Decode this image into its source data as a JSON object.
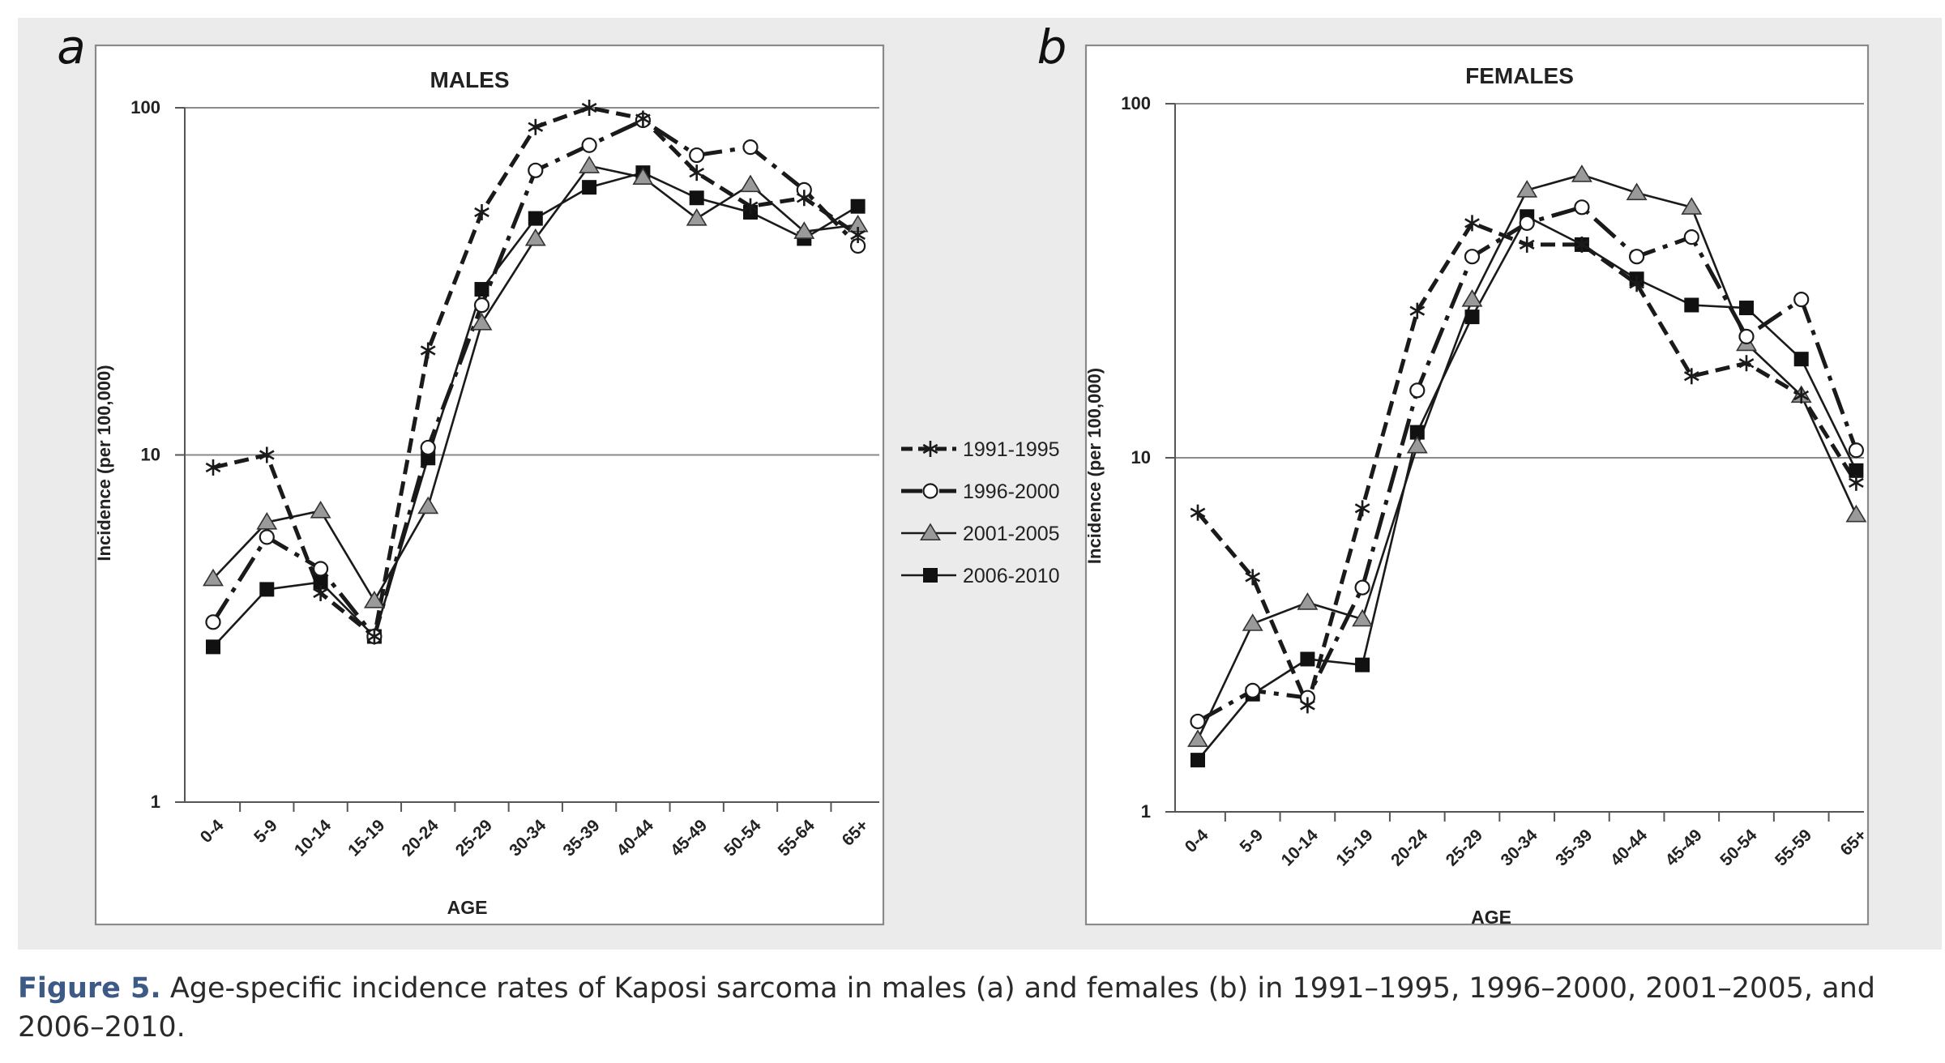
{
  "panel_labels": [
    "a",
    "b"
  ],
  "legend": {
    "entries": [
      {
        "label": "1991-1995",
        "style": "dashed",
        "marker": "star"
      },
      {
        "label": "1996-2000",
        "style": "dashdot",
        "marker": "circle-open"
      },
      {
        "label": "2001-2005",
        "style": "solid",
        "marker": "triangle-gray"
      },
      {
        "label": "2006-2010",
        "style": "solid",
        "marker": "square-black"
      }
    ]
  },
  "caption": {
    "label": "Figure 5.",
    "text": " Age-specific incidence rates of Kaposi sarcoma in males (a) and females (b) in 1991–1995, 1996–2000, 2001–2005, and 2006–2010."
  },
  "chart_data": [
    {
      "type": "line",
      "panel": "a",
      "title": "MALES",
      "xlabel": "AGE",
      "ylabel": "Incidence (per 100,000)",
      "yscale": "log",
      "ylim": [
        1,
        100
      ],
      "yticks": [
        "1",
        "10",
        "100"
      ],
      "grid": "horizontal",
      "categories": [
        "0-4",
        "5-9",
        "10-14",
        "15-19",
        "20-24",
        "25-29",
        "30-34",
        "35-39",
        "40-44",
        "45-49",
        "50-54",
        "55-64",
        "65+"
      ],
      "series": [
        {
          "name": "1991-1995",
          "values": [
            9.2,
            10,
            4.0,
            3.0,
            20,
            50,
            88,
            100,
            93,
            65,
            52,
            55,
            43
          ]
        },
        {
          "name": "1996-2000",
          "values": [
            3.3,
            5.8,
            4.7,
            3.0,
            10.5,
            27,
            66,
            78,
            92,
            73,
            77,
            58,
            40
          ]
        },
        {
          "name": "2001-2005",
          "values": [
            4.4,
            6.4,
            6.9,
            3.8,
            7.1,
            24,
            42,
            68,
            63,
            48,
            60,
            44,
            46
          ]
        },
        {
          "name": "2006-2010",
          "values": [
            2.8,
            4.1,
            4.3,
            3.0,
            9.8,
            30,
            48,
            59,
            65,
            55,
            50,
            42,
            52
          ]
        }
      ]
    },
    {
      "type": "line",
      "panel": "b",
      "title": "FEMALES",
      "xlabel": "AGE",
      "ylabel": "Incidence (per 100,000)",
      "yscale": "log",
      "ylim": [
        1,
        100
      ],
      "yticks": [
        "1",
        "10",
        "100"
      ],
      "grid": "horizontal",
      "categories": [
        "0-4",
        "5-9",
        "10-14",
        "15-19",
        "20-24",
        "25-29",
        "30-34",
        "35-39",
        "40-44",
        "45-49",
        "50-54",
        "55-59",
        "65+"
      ],
      "series": [
        {
          "name": "1991-1995",
          "values": [
            7.0,
            4.6,
            2.0,
            7.2,
            26,
            46,
            40,
            40,
            31,
            17,
            18.5,
            15,
            8.5
          ]
        },
        {
          "name": "1996-2000",
          "values": [
            1.8,
            2.2,
            2.1,
            4.3,
            15.5,
            37,
            46,
            51,
            37,
            42,
            22,
            28,
            10.5
          ]
        },
        {
          "name": "2001-2005",
          "values": [
            1.6,
            3.4,
            3.9,
            3.5,
            10.8,
            28,
            57,
            63,
            56,
            51,
            21,
            15,
            6.9
          ]
        },
        {
          "name": "2006-2010",
          "values": [
            1.4,
            2.15,
            2.7,
            2.6,
            11.8,
            25,
            48,
            40,
            32,
            27,
            26.5,
            19,
            9.2
          ]
        }
      ]
    }
  ]
}
